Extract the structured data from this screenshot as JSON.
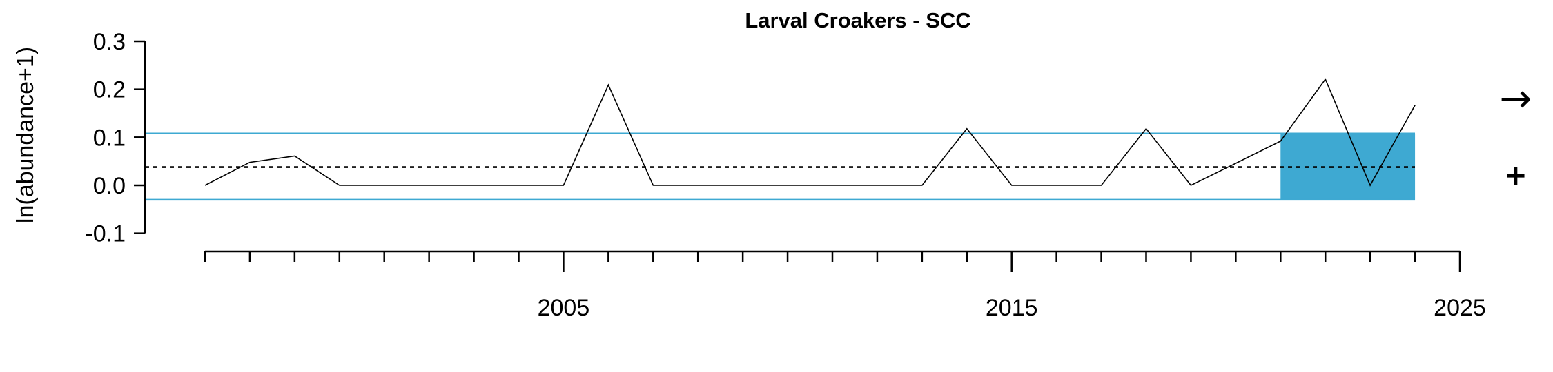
{
  "chart_data": {
    "type": "line",
    "title": "Larval Croakers - SCC",
    "ylabel": "ln(abundance+1)",
    "xlabel": "",
    "xlim": [
      1996,
      2025
    ],
    "ylim": [
      -0.1,
      0.3
    ],
    "yticks": [
      -0.1,
      0.0,
      0.1,
      0.2,
      0.3
    ],
    "ytick_labels": [
      "-0.1",
      "0.0",
      "0.1",
      "0.2",
      "0.3"
    ],
    "xticks_major": [
      2005,
      2015,
      2025
    ],
    "xtick_labels": [
      "2005",
      "2015",
      "2025"
    ],
    "xticks_minor_start": 1997,
    "xticks_minor_end": 2025,
    "series": [
      {
        "x": [
          1997,
          1998,
          1999,
          2000,
          2001,
          2002,
          2003,
          2004,
          2005,
          2006,
          2007,
          2008,
          2009,
          2010,
          2011,
          2012,
          2013,
          2014,
          2015,
          2016,
          2017,
          2018,
          2019,
          2020,
          2021,
          2022,
          2023,
          2024
        ],
        "values": [
          0.0,
          0.048,
          0.061,
          0.0,
          0.0,
          0.0,
          0.0,
          0.0,
          0.0,
          0.209,
          0.0,
          0.0,
          0.0,
          0.0,
          0.0,
          0.0,
          0.0,
          0.118,
          0.0,
          0.0,
          0.0,
          0.118,
          0.0,
          0.046,
          0.092,
          0.221,
          0.0,
          0.167
        ]
      }
    ],
    "mean": 0.038,
    "upper_sd": 0.108,
    "lower_sd": -0.03,
    "highlight_x_range": [
      2021,
      2024
    ],
    "band_color": "#3ea9d2",
    "trend_symbol": "→",
    "mean_symbol": "+"
  }
}
